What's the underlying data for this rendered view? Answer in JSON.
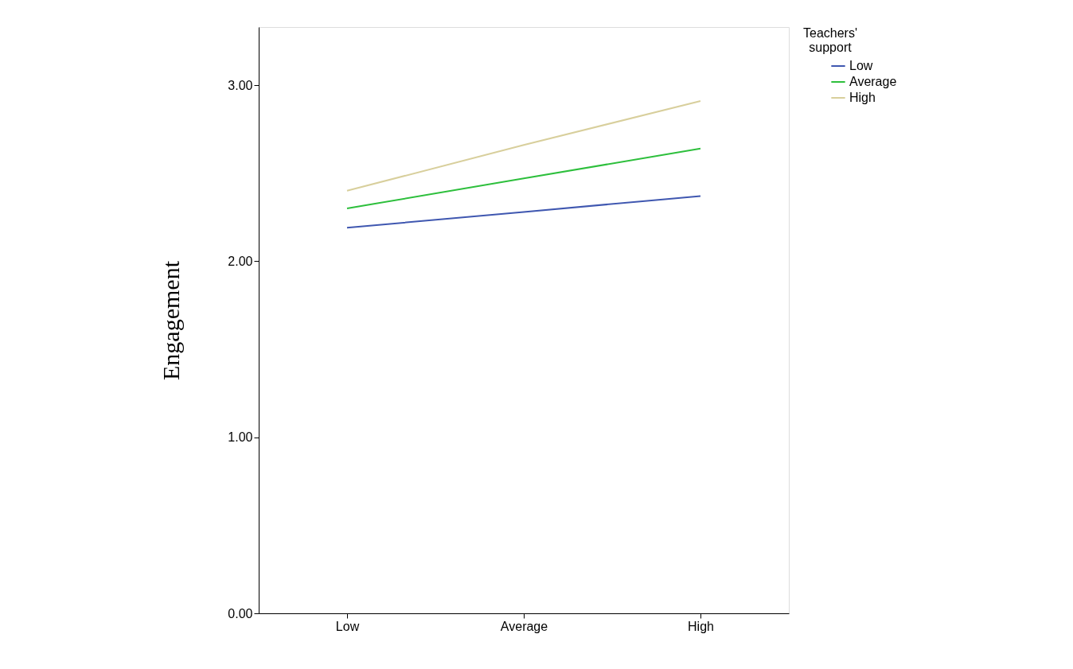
{
  "chart_data": {
    "type": "line",
    "ylabel": "Engagement",
    "legend_title": "Teachers' support",
    "categories": [
      "Low",
      "Average",
      "High"
    ],
    "series": [
      {
        "name": "Low",
        "color": "#3f57b0",
        "values": [
          2.19,
          2.28,
          2.37
        ]
      },
      {
        "name": "Average",
        "color": "#2dbf3c",
        "values": [
          2.3,
          2.47,
          2.64
        ]
      },
      {
        "name": "High",
        "color": "#d8cf9c",
        "values": [
          2.4,
          2.66,
          2.91
        ]
      }
    ],
    "ylim": [
      0,
      3.33
    ],
    "yticks": [
      {
        "value": 0,
        "label": "0.00"
      },
      {
        "value": 1,
        "label": "1.00"
      },
      {
        "value": 2,
        "label": "2.00"
      },
      {
        "value": 3,
        "label": "3.00"
      }
    ],
    "grid": false,
    "legend": "top right",
    "marker": "none",
    "line_style": "solid"
  }
}
